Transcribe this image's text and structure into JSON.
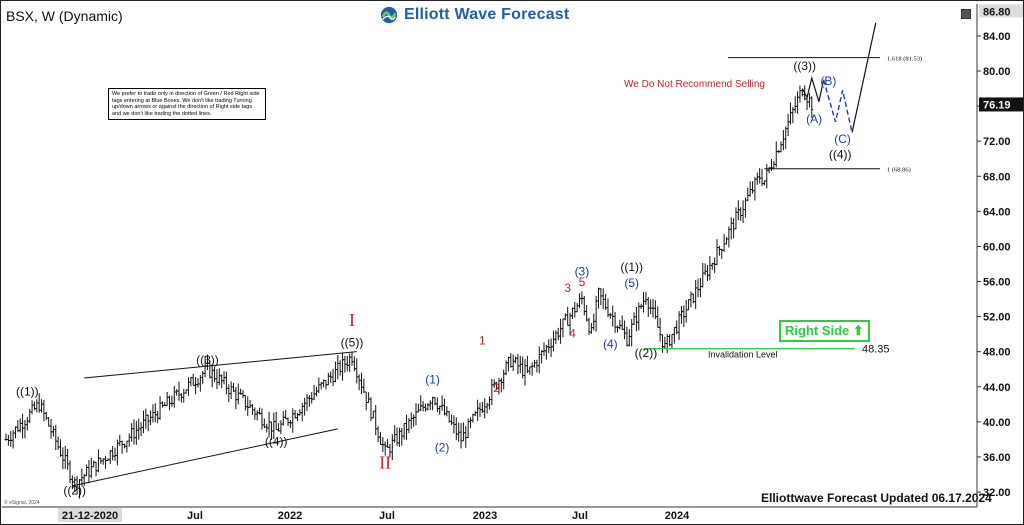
{
  "header": {
    "symbol_title": "BSX, W (Dynamic)",
    "brand_name": "Elliott Wave Forecast"
  },
  "note": {
    "text": "We prefer to trade only in direction of Green / Red Right side tags entering at Blue Boxes. We don't like trading Turning up/down arrows or against the direction of Right side tags and we don't like trading the dotted lines."
  },
  "warning_text": "We Do Not Recommend Selling",
  "right_side_label": "Right Side ⬆",
  "footer_text": "Elliottwave Forecast Updated 06.17.2024",
  "copyright": "© eSignal, 2024",
  "colors": {
    "brand_blue": "#1f5fa8",
    "wave_red": "#c0262c",
    "wave_blue": "#1a3fa0",
    "green": "#2ecc40",
    "price_tag_bg": "#111111"
  },
  "chart_data": {
    "type": "ohlc",
    "y_axis": {
      "ylim": [
        30.5,
        87.5
      ],
      "ticks": [
        "32.00",
        "36.00",
        "40.00",
        "44.00",
        "48.00",
        "52.00",
        "56.00",
        "60.00",
        "64.00",
        "68.00",
        "72.00",
        "76.00",
        "80.00",
        "84.00"
      ],
      "top_value": "86.80",
      "current_price": "76.19"
    },
    "x_axis": {
      "labels": [
        "21-12-2020",
        "Jul",
        "2022",
        "Jul",
        "2023",
        "Jul",
        "2024"
      ],
      "first_label_highlighted": true
    },
    "price_path": [
      {
        "week": 0,
        "price": 38.0
      },
      {
        "week": 14,
        "price": 42.0
      },
      {
        "week": 29,
        "price": 33.0
      },
      {
        "week": 85,
        "price": 46.0
      },
      {
        "week": 114,
        "price": 39.0
      },
      {
        "week": 146,
        "price": 47.5
      },
      {
        "week": 160,
        "price": 36.5
      },
      {
        "week": 180,
        "price": 43.0
      },
      {
        "week": 192,
        "price": 38.0
      },
      {
        "week": 213,
        "price": 47.0
      },
      {
        "week": 220,
        "price": 45.5
      },
      {
        "week": 243,
        "price": 54.0
      },
      {
        "week": 247,
        "price": 50.0
      },
      {
        "week": 250,
        "price": 54.5
      },
      {
        "week": 262,
        "price": 49.5
      },
      {
        "week": 270,
        "price": 54.5
      },
      {
        "week": 278,
        "price": 48.5
      },
      {
        "week": 318,
        "price": 68.0
      },
      {
        "week": 320,
        "price": 67.5
      },
      {
        "week": 336,
        "price": 78.0
      },
      {
        "week": 340,
        "price": 76.2
      }
    ],
    "levels": [
      {
        "label": "1.618 (81.53)",
        "value": 81.53
      },
      {
        "label": "1 (68.86)",
        "value": 68.86
      },
      {
        "label": "48.35",
        "value": 48.35,
        "caption": "Invalidation Level",
        "color": "green"
      }
    ],
    "triangle_lines": [
      {
        "from": [
          33,
          45
        ],
        "to": [
          148,
          48
        ]
      },
      {
        "from": [
          28,
          32.7
        ],
        "to": [
          140,
          39.2
        ]
      }
    ],
    "projection": {
      "solid": [
        [
          336,
          78.0
        ],
        [
          338,
          77.0
        ],
        [
          340,
          79.2
        ],
        [
          343,
          76.5
        ],
        [
          345,
          79.0
        ]
      ],
      "dashed": [
        [
          345,
          79.0
        ],
        [
          350,
          74.2
        ],
        [
          353,
          77.8
        ],
        [
          357,
          73.0
        ]
      ],
      "solid_up": [
        [
          357,
          73.0
        ],
        [
          367,
          85.5
        ]
      ]
    },
    "wave_labels": [
      {
        "text": "((1))",
        "week": 9,
        "price": 43.0,
        "color": "black"
      },
      {
        "text": "((2))",
        "week": 29,
        "price": 31.7,
        "color": "black"
      },
      {
        "text": "((3))",
        "week": 85,
        "price": 46.6,
        "color": "black"
      },
      {
        "text": "((4))",
        "week": 114,
        "price": 37.3,
        "color": "black"
      },
      {
        "text": "((5))",
        "week": 146,
        "price": 48.6,
        "color": "black"
      },
      {
        "text": "I",
        "week": 146,
        "price": 50.9,
        "color": "red",
        "large": true
      },
      {
        "text": "II",
        "week": 160,
        "price": 34.7,
        "color": "red",
        "large": true
      },
      {
        "text": "(1)",
        "week": 180,
        "price": 44.4,
        "color": "blue"
      },
      {
        "text": "(2)",
        "week": 184,
        "price": 36.6,
        "color": "blue"
      },
      {
        "text": "1",
        "week": 201,
        "price": 48.8,
        "color": "red"
      },
      {
        "text": "2",
        "week": 207,
        "price": 43.4,
        "color": "red"
      },
      {
        "text": "3",
        "week": 237,
        "price": 54.8,
        "color": "red"
      },
      {
        "text": "4",
        "week": 239,
        "price": 49.6,
        "color": "red"
      },
      {
        "text": "5",
        "week": 243,
        "price": 55.5,
        "color": "red"
      },
      {
        "text": "(3)",
        "week": 243,
        "price": 56.7,
        "color": "blue"
      },
      {
        "text": "(4)",
        "week": 255,
        "price": 48.4,
        "color": "blue"
      },
      {
        "text": "(5)",
        "week": 264,
        "price": 55.4,
        "color": "blue"
      },
      {
        "text": "((1))",
        "week": 264,
        "price": 57.2,
        "color": "black"
      },
      {
        "text": "((2))",
        "week": 270,
        "price": 47.4,
        "color": "black"
      },
      {
        "text": "((3))",
        "week": 337,
        "price": 80.1,
        "color": "black"
      },
      {
        "text": "(A)",
        "week": 341,
        "price": 74.1,
        "color": "blue"
      },
      {
        "text": "(B)",
        "week": 347,
        "price": 78.4,
        "color": "blue"
      },
      {
        "text": "(C)",
        "week": 353,
        "price": 71.8,
        "color": "blue"
      },
      {
        "text": "((4))",
        "week": 352,
        "price": 70.0,
        "color": "black"
      }
    ]
  }
}
